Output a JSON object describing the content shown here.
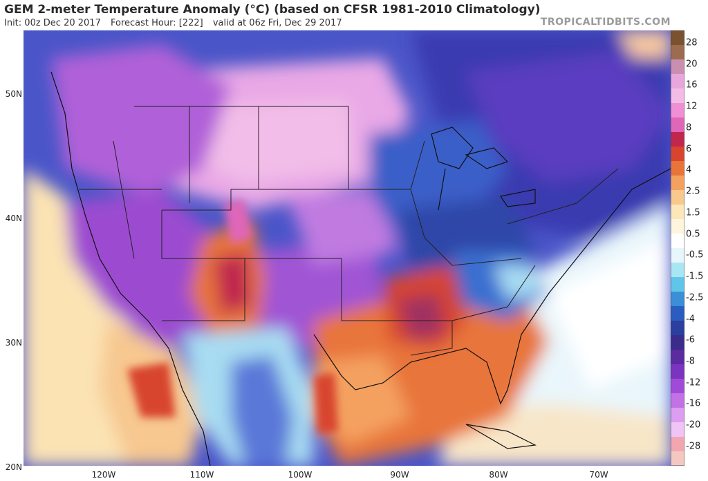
{
  "header": {
    "title": "GEM 2-meter Temperature Anomaly (°C) (based on CFSR 1981-2010 Climatology)",
    "init": "Init: 00z Dec 20 2017",
    "forecast_hour": "Forecast Hour: [222]",
    "valid": "valid at 06z Fri, Dec 29 2017",
    "brand": "TROPICALTIDBITS.COM"
  },
  "colorbar": {
    "labels": [
      "28",
      "20",
      "16",
      "12",
      "8",
      "6",
      "4",
      "2.5",
      "1.5",
      "0.5",
      "-0.5",
      "-1.5",
      "-2.5",
      "-4",
      "-6",
      "-8",
      "-12",
      "-16",
      "-20",
      "-28"
    ],
    "colors": [
      "#7a5230",
      "#9c6b50",
      "#c98fb0",
      "#e9a6dc",
      "#f2bce6",
      "#f08fd4",
      "#e066b8",
      "#c0264e",
      "#d8442e",
      "#e8743a",
      "#f4a160",
      "#f8c88c",
      "#fbe7b8",
      "#fdf6dc",
      "#ffffff",
      "#e6f6fb",
      "#a8e6f4",
      "#5fc6ea",
      "#3a8fd6",
      "#2a5dbf",
      "#2b3f9e",
      "#3b2c8c",
      "#5a2ca0",
      "#7a34c0",
      "#a24ad8",
      "#c272e6",
      "#dc9ef0",
      "#f0c4f6",
      "#f4a6b0",
      "#f2c8c0"
    ]
  },
  "axes": {
    "lat_labels": [
      "50N",
      "40N",
      "30N",
      "20N"
    ],
    "lon_labels": [
      "120W",
      "110W",
      "100W",
      "90W",
      "80W",
      "70W"
    ]
  }
}
